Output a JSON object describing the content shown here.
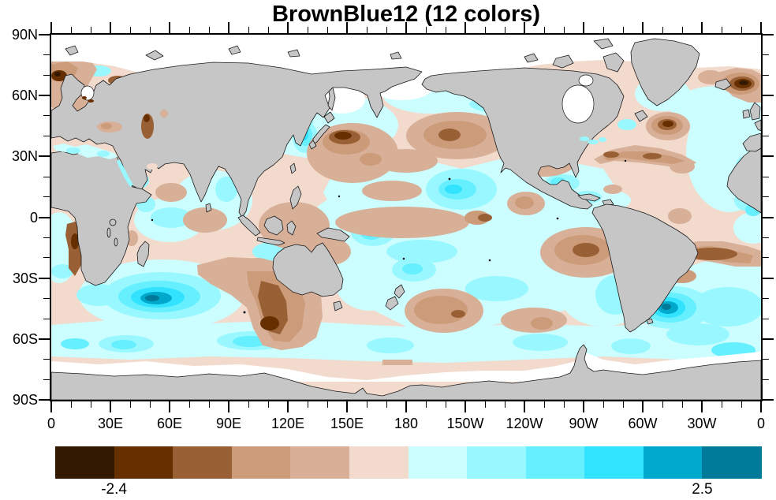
{
  "title": "BrownBlue12 (12 colors)",
  "axes": {
    "lat_labels": [
      "90N",
      "60N",
      "30N",
      "0",
      "30S",
      "60S",
      "90S"
    ],
    "lon_labels": [
      "0",
      "30E",
      "60E",
      "90E",
      "120E",
      "150E",
      "180",
      "150W",
      "120W",
      "90W",
      "60W",
      "30W",
      "0"
    ]
  },
  "colorbar": {
    "colors": [
      "#331900",
      "#662F00",
      "#996035",
      "#CC9B7A",
      "#D8AF97",
      "#F2DACD",
      "#CCFDFF",
      "#99F8FF",
      "#65EFFF",
      "#32E3FF",
      "#00A9CC",
      "#007A99"
    ],
    "labels": [
      {
        "text": "-2.4",
        "boundary": 1
      },
      {
        "text": "2.5",
        "boundary": 11
      }
    ]
  },
  "map": {
    "land_color": "#C6C6C6",
    "coast_color": "#1a1a1a",
    "nodata_color": "#ffffff"
  },
  "chart_data": {
    "type": "heatmap",
    "subtype": "filled_contour_global_map",
    "title": "BrownBlue12 (12 colors)",
    "palette_name": "BrownBlue12",
    "n_colors": 12,
    "palette_colors": [
      "#331900",
      "#662F00",
      "#996035",
      "#CC9B7A",
      "#D8AF97",
      "#F2DACD",
      "#CCFDFF",
      "#99F8FF",
      "#65EFFF",
      "#32E3FF",
      "#00A9CC",
      "#007A99"
    ],
    "colorbar_labels": [
      {
        "value": -2.4,
        "at_color_boundary": 1
      },
      {
        "value": 2.5,
        "at_color_boundary": 11
      }
    ],
    "x_axis": {
      "tick_labels": [
        "0",
        "30E",
        "60E",
        "90E",
        "120E",
        "150E",
        "180",
        "150W",
        "120W",
        "90W",
        "60W",
        "30W",
        "0"
      ],
      "major_interval_deg": 30,
      "minor_interval_deg": 10,
      "range": "0 eastward through 180 to 0 (360 degrees, map centered on 180)"
    },
    "y_axis": {
      "tick_labels": [
        "90N",
        "60N",
        "30N",
        "0",
        "30S",
        "60S",
        "90S"
      ],
      "major_interval_deg": 30,
      "minor_interval_deg": 10,
      "range": "90N to 90S"
    },
    "legend_position": "horizontal labelbar below map",
    "grid": false,
    "description": "Global ocean anomaly field rendered as filled contours using the 12-color BrownBlue12 palette (browns negative, blues positive); continents gray with black coastlines; polar/no-data regions white. Strong negative (brown) centers: SE Indian Ocean ~110E/55S, NW Pacific east of Japan, NW Atlantic near Newfoundland, Norwegian/Barents Sea, SE Pacific off Peru, central North Pacific, South Atlantic ~10-20S. Strong positive (blue) centers: south Indian Ocean ~60E/43S and SW Atlantic east of Argentina ~50W/42S."
  }
}
